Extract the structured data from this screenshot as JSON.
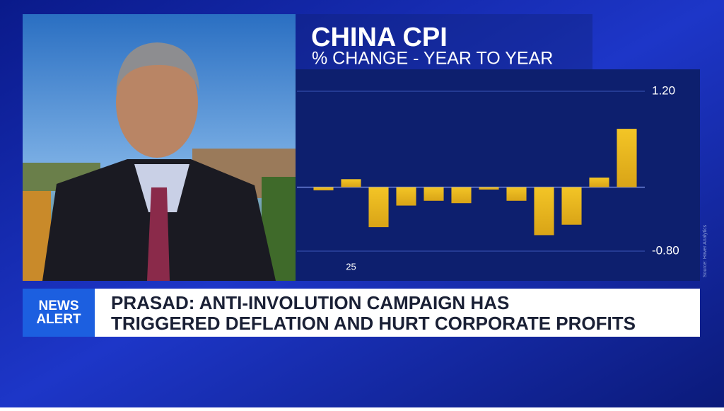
{
  "chart_data": {
    "type": "bar",
    "title": "CHINA CPI",
    "subtitle": "% CHANGE - YEAR TO YEAR",
    "categories": [
      null,
      "25",
      null,
      null,
      null,
      null,
      null,
      null,
      null,
      null,
      null,
      null
    ],
    "values": [
      -0.04,
      0.1,
      -0.5,
      -0.23,
      -0.17,
      -0.2,
      -0.03,
      -0.17,
      -0.6,
      -0.47,
      0.12,
      0.73
    ],
    "color": "#e6b422",
    "ylim": [
      -0.8,
      1.2
    ],
    "yticks": [
      {
        "value": -0.8,
        "label": "-0.80"
      },
      {
        "value": 1.2,
        "label": "1.20"
      }
    ],
    "grid": true,
    "source": "Source: Haver Analytics"
  },
  "banner": {
    "badge": [
      "NEWS",
      "ALERT"
    ],
    "headline": [
      "PRASAD: ANTI-INVOLUTION CAMPAIGN HAS",
      "TRIGGERED DEFLATION AND HURT CORPORATE PROFITS"
    ]
  }
}
